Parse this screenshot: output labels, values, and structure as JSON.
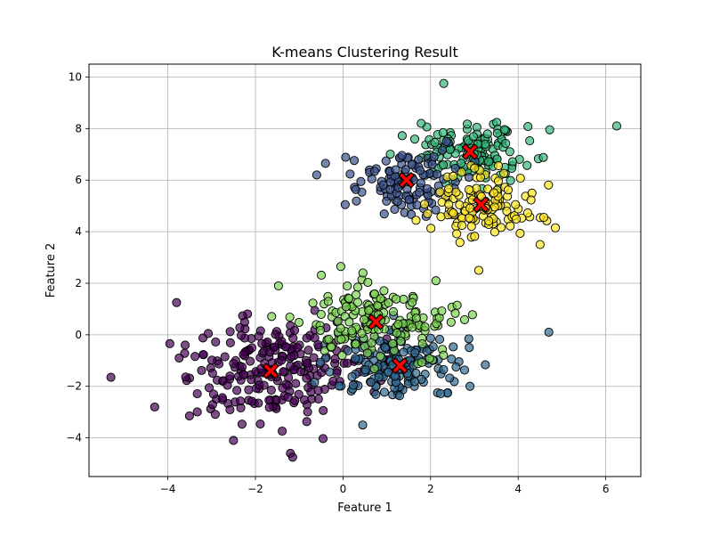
{
  "chart_data": {
    "type": "scatter",
    "title": "K-means Clustering Result",
    "xlabel": "Feature 1",
    "ylabel": "Feature 2",
    "xlim": [
      -5.8,
      6.8
    ],
    "ylim": [
      -5.5,
      10.5
    ],
    "xticks": [
      -4,
      -2,
      0,
      2,
      4,
      6
    ],
    "yticks": [
      -4,
      -2,
      0,
      2,
      4,
      6,
      8,
      10
    ],
    "grid": true,
    "clusters": [
      {
        "color": "#440154",
        "center": [
          -1.6,
          -1.3
        ],
        "spread": [
          1.0,
          1.05
        ],
        "n": 230
      },
      {
        "color": "#31688e",
        "center": [
          1.3,
          -1.2
        ],
        "spread": [
          0.75,
          0.75
        ],
        "n": 170
      },
      {
        "color": "#7ad151",
        "center": [
          0.75,
          0.55
        ],
        "spread": [
          0.95,
          0.75
        ],
        "n": 170
      },
      {
        "color": "#35b779",
        "center": [
          2.9,
          7.1
        ],
        "spread": [
          0.7,
          0.55
        ],
        "n": 140
      },
      {
        "color": "#3b528b",
        "center": [
          1.45,
          5.95
        ],
        "spread": [
          0.6,
          0.65
        ],
        "n": 110
      },
      {
        "color": "#fde725",
        "center": [
          3.15,
          5.0
        ],
        "spread": [
          0.65,
          0.6
        ],
        "n": 120
      }
    ],
    "outliers": [
      {
        "x": -5.3,
        "y": -1.65,
        "color": "#440154"
      },
      {
        "x": -3.8,
        "y": 1.25,
        "color": "#440154"
      },
      {
        "x": -4.3,
        "y": -2.8,
        "color": "#440154"
      },
      {
        "x": -1.2,
        "y": -4.6,
        "color": "#440154"
      },
      {
        "x": -1.15,
        "y": -4.75,
        "color": "#440154"
      },
      {
        "x": -2.5,
        "y": -4.1,
        "color": "#440154"
      },
      {
        "x": 6.25,
        "y": 8.1,
        "color": "#35b779"
      },
      {
        "x": 2.3,
        "y": 9.75,
        "color": "#35b779"
      },
      {
        "x": -0.4,
        "y": 6.65,
        "color": "#3b528b"
      },
      {
        "x": -0.6,
        "y": 6.2,
        "color": "#3b528b"
      },
      {
        "x": 0.05,
        "y": 5.05,
        "color": "#3b528b"
      },
      {
        "x": 4.85,
        "y": 4.15,
        "color": "#fde725"
      },
      {
        "x": 4.5,
        "y": 3.5,
        "color": "#fde725"
      },
      {
        "x": 3.1,
        "y": 2.5,
        "color": "#fde725"
      },
      {
        "x": 4.7,
        "y": 0.1,
        "color": "#31688e"
      },
      {
        "x": 0.45,
        "y": -3.5,
        "color": "#31688e"
      },
      {
        "x": 2.9,
        "y": -2.0,
        "color": "#31688e"
      },
      {
        "x": -0.05,
        "y": 2.65,
        "color": "#7ad151"
      }
    ],
    "centroids": [
      {
        "x": -1.65,
        "y": -1.4
      },
      {
        "x": 1.3,
        "y": -1.2
      },
      {
        "x": 0.75,
        "y": 0.5
      },
      {
        "x": 2.9,
        "y": 7.1
      },
      {
        "x": 1.45,
        "y": 6.0
      },
      {
        "x": 3.15,
        "y": 5.05
      }
    ]
  }
}
